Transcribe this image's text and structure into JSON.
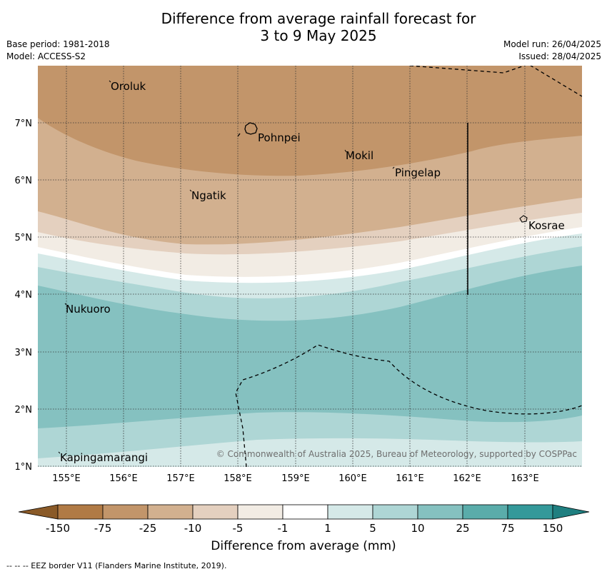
{
  "title_line1": "Difference from average rainfall forecast for",
  "title_line2": "3 to 9 May 2025",
  "base_period": "Base period: 1981-2018",
  "model": "Model: ACCESS-S2",
  "model_run": "Model run: 26/04/2025",
  "issued": "Issued: 28/04/2025",
  "lon_ticks": [
    "155°E",
    "156°E",
    "157°E",
    "158°E",
    "159°E",
    "160°E",
    "161°E",
    "162°E",
    "163°E"
  ],
  "lat_ticks": [
    "7°N",
    "6°N",
    "5°N",
    "4°N",
    "3°N",
    "2°N",
    "1°N"
  ],
  "places": [
    "Oroluk",
    "Pohnpei",
    "Mokil",
    "Pingelap",
    "Ngatik",
    "Kosrae",
    "Nukuoro",
    "Kapingamarangi"
  ],
  "copyright": "© Commonwealth of Australia 2025, Bureau of Meteorology, supported by COSPPac",
  "colorbar": {
    "ticks": [
      "-150",
      "-75",
      "-25",
      "-10",
      "-5",
      "-1",
      "1",
      "5",
      "10",
      "25",
      "75",
      "150"
    ],
    "colors": [
      "#8a5a28",
      "#b07a45",
      "#c2956a",
      "#d2b08f",
      "#e4d0bf",
      "#f2ece4",
      "#ffffff",
      "#d5e9e8",
      "#aed6d5",
      "#85c1c0",
      "#5aacaa",
      "#34999a",
      "#1f7f80"
    ],
    "label": "Difference from average (mm)"
  },
  "footnote": "--  --  -- EEZ border V11 (Flanders Marine Institute, 2019)."
}
